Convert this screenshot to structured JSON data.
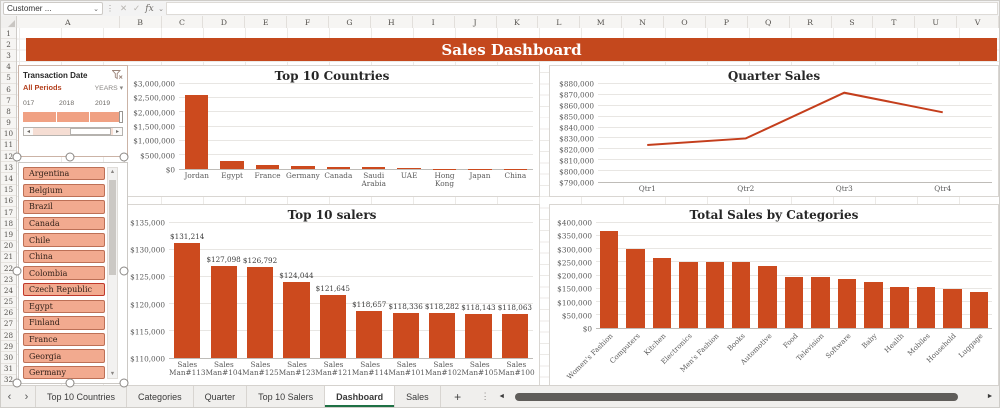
{
  "colors": {
    "banner_bg": "#c4481d",
    "bar_fill": "#cc4a1e",
    "line_stroke": "#c43e1c",
    "slicer_fill": "#f2aa8f",
    "slicer_border": "#bd7056",
    "slicer_highlight_border": "#c0392b",
    "tab_active_underline": "#1e7145",
    "timeline_band": "#f0a183"
  },
  "formula_bar": {
    "name_box_value": "Customer ...",
    "icons": {
      "chevron_down": "⌄",
      "dots": "⋮",
      "cancel": "✕",
      "enter": "✓",
      "fx": "fx"
    }
  },
  "sheet": {
    "columns": [
      "A",
      "B",
      "C",
      "D",
      "E",
      "F",
      "G",
      "H",
      "I",
      "J",
      "K",
      "L",
      "M",
      "N",
      "O",
      "P",
      "Q",
      "R",
      "S",
      "T",
      "U",
      "V"
    ],
    "rows": [
      "1",
      "2",
      "3",
      "4",
      "5",
      "6",
      "7",
      "8",
      "9",
      "10",
      "11",
      "12",
      "13",
      "14",
      "15",
      "16",
      "17",
      "18",
      "19",
      "20",
      "21",
      "22",
      "23",
      "24",
      "25",
      "26",
      "27",
      "28",
      "29",
      "30",
      "31",
      "32"
    ]
  },
  "banner": {
    "title": "Sales Dashboard"
  },
  "timeline": {
    "title": "Transaction Date",
    "period": "All Periods",
    "level": "YEARS",
    "level_chevron": "▾",
    "years": [
      "017",
      "2018",
      "2019"
    ],
    "scroll_left": "◂",
    "scroll_right": "▸"
  },
  "country_slicer": {
    "items": [
      "Argentina",
      "Belgium",
      "Brazil",
      "Canada",
      "Chile",
      "China",
      "Colombia",
      "Czech Republic",
      "Egypt",
      "Finland",
      "France",
      "Georgia",
      "Germany"
    ],
    "highlighted_item": "Czech Republic",
    "scroll_up": "▲",
    "scroll_down": "▼"
  },
  "chart_data": [
    {
      "name": "top-10-countries",
      "type": "bar",
      "title": "Top 10 Countries",
      "categories": [
        "Jordan",
        "Egypt",
        "France",
        "Germany",
        "Canada",
        "Saudi Arabia",
        "UAE",
        "Hong Kong",
        "Japan",
        "China"
      ],
      "values": [
        2600000,
        270000,
        150000,
        95000,
        75000,
        55000,
        45000,
        18000,
        11000,
        7000
      ],
      "ylim": [
        0,
        3000000
      ],
      "yticks": [
        {
          "v": 0,
          "label": "$0"
        },
        {
          "v": 500000,
          "label": "$500,000"
        },
        {
          "v": 1000000,
          "label": "$1,000,000"
        },
        {
          "v": 1500000,
          "label": "$1,500,000"
        },
        {
          "v": 2000000,
          "label": "$2,000,000"
        },
        {
          "v": 2500000,
          "label": "$2,500,000"
        },
        {
          "v": 3000000,
          "label": "$3,000,000"
        }
      ],
      "grid": true,
      "legend": "none"
    },
    {
      "name": "quarter-sales",
      "type": "line",
      "title": "Quarter Sales",
      "categories": [
        "Qtr1",
        "Qtr2",
        "Qtr3",
        "Qtr4"
      ],
      "values": [
        824000,
        830000,
        872000,
        854000
      ],
      "ylim": [
        790000,
        880000
      ],
      "yticks": [
        {
          "v": 790000,
          "label": "$790,000"
        },
        {
          "v": 800000,
          "label": "$800,000"
        },
        {
          "v": 810000,
          "label": "$810,000"
        },
        {
          "v": 820000,
          "label": "$820,000"
        },
        {
          "v": 830000,
          "label": "$830,000"
        },
        {
          "v": 840000,
          "label": "$840,000"
        },
        {
          "v": 850000,
          "label": "$850,000"
        },
        {
          "v": 860000,
          "label": "$860,000"
        },
        {
          "v": 870000,
          "label": "$870,000"
        },
        {
          "v": 880000,
          "label": "$880,000"
        }
      ],
      "grid": true,
      "legend": "none"
    },
    {
      "name": "top-10-salers",
      "type": "bar",
      "title": "Top 10 salers",
      "categories": [
        "Sales Man#113",
        "Sales Man#104",
        "Sales Man#125",
        "Sales Man#123",
        "Sales Man#121",
        "Sales Man#114",
        "Sales Man#101",
        "Sales Man#102",
        "Sales Man#105",
        "Sales Man#100"
      ],
      "values": [
        131214,
        127098,
        126792,
        124044,
        121645,
        118657,
        118336,
        118282,
        118143,
        118063
      ],
      "value_labels": [
        "$131,214",
        "$127,098",
        "$126,792",
        "$124,044",
        "$121,645",
        "$118,657",
        "$118,336",
        "$118,282",
        "$118,143",
        "$118,063"
      ],
      "ylim": [
        110000,
        135000
      ],
      "yticks": [
        {
          "v": 110000,
          "label": "$110,000"
        },
        {
          "v": 115000,
          "label": "$115,000"
        },
        {
          "v": 120000,
          "label": "$120,000"
        },
        {
          "v": 125000,
          "label": "$125,000"
        },
        {
          "v": 130000,
          "label": "$130,000"
        },
        {
          "v": 135000,
          "label": "$135,000"
        }
      ],
      "grid": true,
      "legend": "none"
    },
    {
      "name": "total-sales-by-categories",
      "type": "bar",
      "title": "Total Sales by Categories",
      "categories": [
        "Women's Fashion",
        "Computers",
        "Kitchen",
        "Electronics",
        "Men's Fashion",
        "Books",
        "Automotive",
        "Food",
        "Television",
        "Software",
        "Baby",
        "Health",
        "Mobiles",
        "Household",
        "Luggage"
      ],
      "values": [
        368000,
        300000,
        265000,
        253000,
        252000,
        252000,
        238000,
        196000,
        195000,
        186000,
        176000,
        157000,
        155000,
        149000,
        138000
      ],
      "ylim": [
        0,
        400000
      ],
      "yticks": [
        {
          "v": 0,
          "label": "$0"
        },
        {
          "v": 50000,
          "label": "$50,000"
        },
        {
          "v": 100000,
          "label": "$100,000"
        },
        {
          "v": 150000,
          "label": "$150,000"
        },
        {
          "v": 200000,
          "label": "$200,000"
        },
        {
          "v": 250000,
          "label": "$250,000"
        },
        {
          "v": 300000,
          "label": "$300,000"
        },
        {
          "v": 350000,
          "label": "$350,000"
        },
        {
          "v": 400000,
          "label": "$400,000"
        }
      ],
      "rotated_labels": true,
      "grid": true,
      "legend": "none"
    }
  ],
  "tabs": {
    "prev": "‹",
    "next": "›",
    "items": [
      {
        "label": "Top 10 Countries",
        "active": false
      },
      {
        "label": "Categories",
        "active": false
      },
      {
        "label": "Quarter",
        "active": false
      },
      {
        "label": "Top 10 Salers",
        "active": false
      },
      {
        "label": "Dashboard",
        "active": true
      },
      {
        "label": "Sales",
        "active": false
      }
    ],
    "add": "+",
    "dots": "⋮",
    "scroll_left": "◄",
    "scroll_right": "►"
  }
}
